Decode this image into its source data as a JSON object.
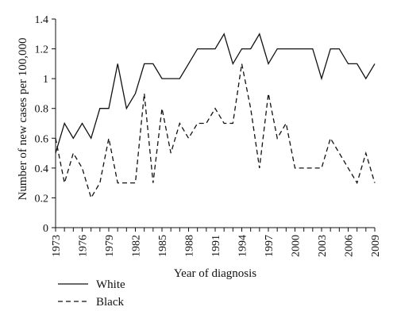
{
  "chart_data": {
    "type": "line",
    "title": "",
    "xlabel": "Year of diagnosis",
    "ylabel": "Number of new cases per 100,000",
    "x": [
      1973,
      1974,
      1975,
      1976,
      1977,
      1978,
      1979,
      1980,
      1981,
      1982,
      1983,
      1984,
      1985,
      1986,
      1987,
      1988,
      1989,
      1990,
      1991,
      1992,
      1993,
      1994,
      1995,
      1996,
      1997,
      1998,
      1999,
      2000,
      2001,
      2002,
      2003,
      2004,
      2005,
      2006,
      2007,
      2008,
      2009
    ],
    "xticks": [
      "1973",
      "1976",
      "1979",
      "1982",
      "1985",
      "1988",
      "1991",
      "1994",
      "1997",
      "2000",
      "2003",
      "2006",
      "2009"
    ],
    "xlim": [
      1973,
      2009
    ],
    "ylim": [
      0,
      1.4
    ],
    "yticks": [
      "0",
      "0.2",
      "0.4",
      "0.6",
      "0.8",
      "1",
      "1.2",
      "1.4"
    ],
    "grid": false,
    "legend_position": "bottom-left",
    "series": [
      {
        "name": "White",
        "style": "solid",
        "values": [
          0.5,
          0.7,
          0.6,
          0.7,
          0.6,
          0.8,
          0.8,
          1.1,
          0.8,
          0.9,
          1.1,
          1.1,
          1.0,
          1.0,
          1.0,
          1.1,
          1.2,
          1.2,
          1.2,
          1.3,
          1.1,
          1.2,
          1.2,
          1.3,
          1.1,
          1.2,
          1.2,
          1.2,
          1.2,
          1.2,
          1.0,
          1.2,
          1.2,
          1.1,
          1.1,
          1.0,
          1.1
        ]
      },
      {
        "name": "Black",
        "style": "dashed",
        "values": [
          0.6,
          0.3,
          0.5,
          0.4,
          0.2,
          0.3,
          0.6,
          0.3,
          0.3,
          0.3,
          0.9,
          0.3,
          0.8,
          0.5,
          0.7,
          0.6,
          0.7,
          0.7,
          0.8,
          0.7,
          0.7,
          1.1,
          0.8,
          0.4,
          0.9,
          0.6,
          0.7,
          0.4,
          0.4,
          0.4,
          0.4,
          0.6,
          0.5,
          0.4,
          0.3,
          0.5,
          0.3
        ]
      }
    ]
  },
  "colors": {
    "line": "#111111",
    "axis": "#111111"
  }
}
